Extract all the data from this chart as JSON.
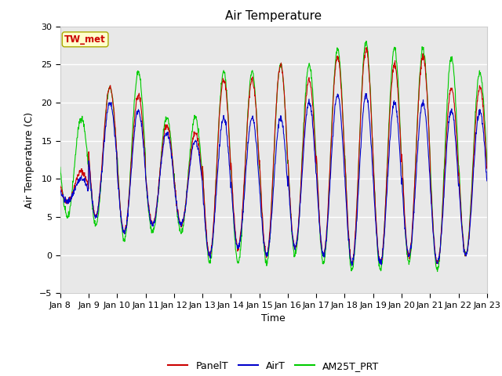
{
  "title": "Air Temperature",
  "xlabel": "Time",
  "ylabel": "Air Temperature (C)",
  "ylim": [
    -5,
    30
  ],
  "yticks": [
    -5,
    0,
    5,
    10,
    15,
    20,
    25,
    30
  ],
  "x_labels": [
    "Jan 8",
    "Jan 9",
    "Jan 10",
    "Jan 11",
    "Jan 12",
    "Jan 13",
    "Jan 14",
    "Jan 15",
    "Jan 16",
    "Jan 17",
    "Jan 18",
    "Jan 19",
    "Jan 20",
    "Jan 21",
    "Jan 22",
    "Jan 23"
  ],
  "fig_bg_color": "#ffffff",
  "plot_bg_color": "#e8e8e8",
  "grid_color": "#ffffff",
  "site_label": "TW_met",
  "site_label_color": "#cc0000",
  "site_label_bg": "#ffffcc",
  "site_label_border": "#aaaa00",
  "legend_labels": [
    "PanelT",
    "AirT",
    "AM25T_PRT"
  ],
  "line_colors": [
    "#cc0000",
    "#0000cc",
    "#00cc00"
  ],
  "title_fontsize": 11,
  "axis_fontsize": 9,
  "tick_fontsize": 8,
  "day_mins_panel": [
    7,
    5,
    3,
    4,
    4,
    0,
    1,
    0,
    1,
    0,
    -1,
    -1,
    0,
    -1,
    0
  ],
  "day_maxs_panel": [
    11,
    22,
    21,
    17,
    16,
    23,
    23,
    25,
    23,
    26,
    27,
    25,
    26,
    22,
    22
  ],
  "day_mins_air": [
    7,
    5,
    3,
    4,
    4,
    0,
    1,
    0,
    1,
    0,
    -1,
    -1,
    0,
    -1,
    0
  ],
  "day_maxs_air": [
    10,
    20,
    19,
    16,
    15,
    18,
    18,
    18,
    20,
    21,
    21,
    20,
    20,
    19,
    19
  ],
  "day_mins_am": [
    5,
    4,
    2,
    3,
    3,
    -1,
    -1,
    -1,
    0,
    -1,
    -2,
    -2,
    -1,
    -2,
    0
  ],
  "day_maxs_am": [
    18,
    22,
    24,
    18,
    18,
    24,
    24,
    25,
    25,
    27,
    28,
    27,
    27,
    26,
    24
  ]
}
